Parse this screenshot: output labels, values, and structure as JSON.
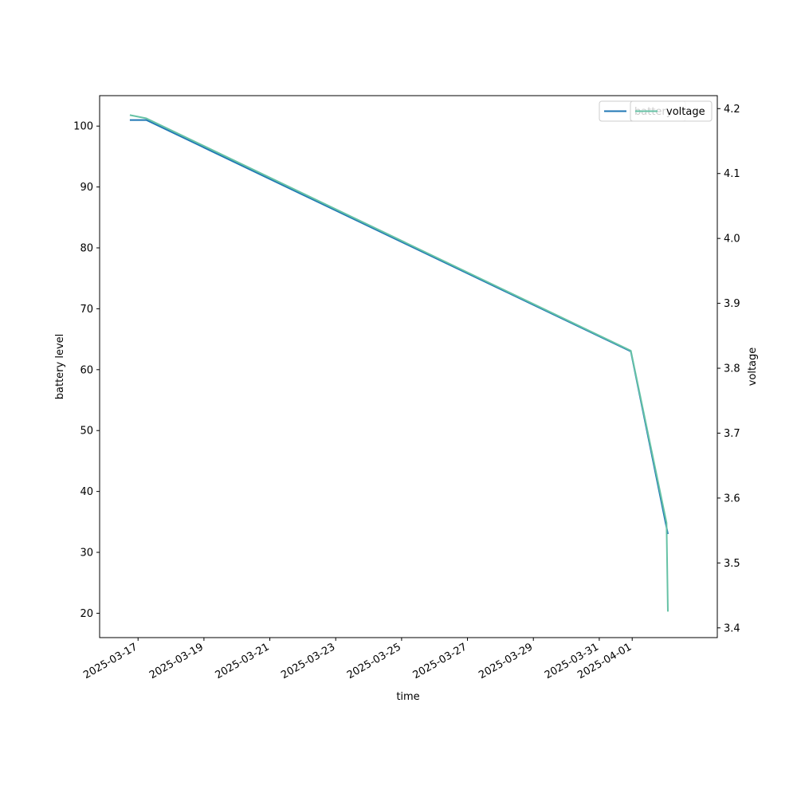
{
  "chart_data": {
    "type": "line",
    "xlabel": "time",
    "ylabel": "battery level",
    "y2label": "voltage",
    "x_ticks": [
      "2025-03-17",
      "2025-03-19",
      "2025-03-21",
      "2025-03-23",
      "2025-03-25",
      "2025-03-27",
      "2025-03-29",
      "2025-03-31",
      "2025-04-01"
    ],
    "xlim": [
      "2025-03-15 20:00",
      "2025-04-03 14:00"
    ],
    "ylim": [
      16,
      105
    ],
    "y_ticks": [
      20,
      30,
      40,
      50,
      60,
      70,
      80,
      90,
      100
    ],
    "y2lim": [
      3.385,
      4.22
    ],
    "y2_ticks": [
      "3.4",
      "3.5",
      "3.6",
      "3.7",
      "3.8",
      "3.9",
      "4.0",
      "4.1",
      "4.2"
    ],
    "legend_position": "top-right",
    "series": [
      {
        "name": "battery",
        "axis": "left",
        "color": "#1f77b4",
        "points": [
          {
            "x": "2025-03-16 18:00",
            "y": 101
          },
          {
            "x": "2025-03-17 06:00",
            "y": 101
          },
          {
            "x": "2025-03-31 23:00",
            "y": 63
          },
          {
            "x": "2025-04-02 02:00",
            "y": 33
          },
          {
            "x": "2025-04-02 02:00",
            "y": 33
          }
        ]
      },
      {
        "name": "voltage",
        "axis": "right",
        "color": "#66c2a5",
        "points": [
          {
            "x": "2025-03-16 18:00",
            "y": 4.19
          },
          {
            "x": "2025-03-17 06:00",
            "y": 4.185
          },
          {
            "x": "2025-03-31 23:00",
            "y": 3.827
          },
          {
            "x": "2025-04-02 01:00",
            "y": 3.562
          },
          {
            "x": "2025-04-02 02:00",
            "y": 3.425
          }
        ]
      }
    ]
  }
}
